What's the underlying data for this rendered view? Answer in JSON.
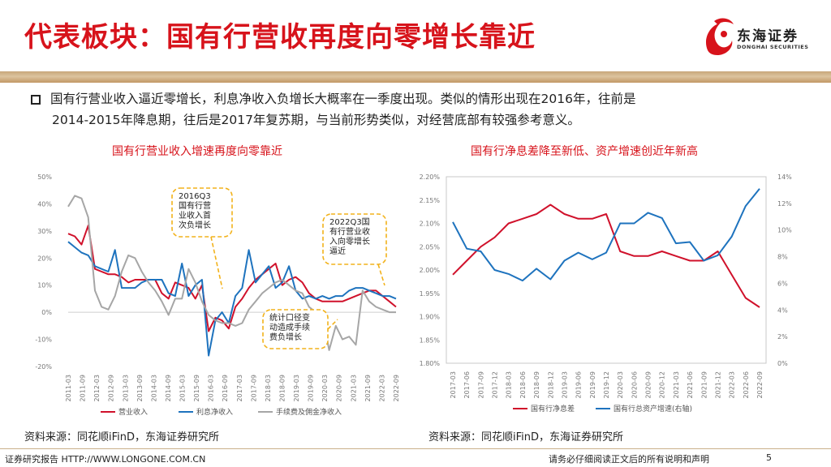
{
  "header": {
    "title": "代表板块：国有行营收再度向零增长靠近",
    "logo_name": "东海证券",
    "logo_en": "DONGHAI SECURITIES"
  },
  "bullet": {
    "line1": "国有行营业收入逼近零增长，利息净收入负增长大概率在一季度出现。类似的情形出现在2016年，往前是",
    "line2": "2014-2015年降息期，往后是2017年复苏期，与当前形势类似，对经营底部有较强参考意义。"
  },
  "sources": {
    "left": "资料来源：同花顺iFinD，东海证券研究所",
    "right": "资料来源：同花顺iFinD，东海证券研究所"
  },
  "footer": {
    "left": "证券研究报告 HTTP://WWW.LONGONE.COM.CN",
    "right": "请务必仔细阅读正文后的所有说明和声明",
    "page": "5"
  },
  "colors": {
    "accent_red": "#d7131b",
    "series_red": "#d0112b",
    "series_blue": "#1e73be",
    "series_gray": "#a6a6a6",
    "annotation_border": "#f2b21b"
  },
  "chart_data": [
    {
      "type": "line",
      "title": "国有行营业收入增速再度向零靠近",
      "ylim": [
        -20,
        50
      ],
      "y_unit": "%",
      "yticks": [
        "-20%",
        "-10%",
        "0%",
        "10%",
        "20%",
        "30%",
        "40%",
        "50%"
      ],
      "xticks": [
        "2011-03",
        "2011-09",
        "2012-03",
        "2012-09",
        "2013-03",
        "2013-09",
        "2014-03",
        "2014-09",
        "2015-03",
        "2015-09",
        "2016-03",
        "2016-09",
        "2017-03",
        "2017-09",
        "2018-03",
        "2018-09",
        "2019-03",
        "2019-09",
        "2020-03",
        "2020-09",
        "2021-03",
        "2021-09",
        "2022-03",
        "2022-09"
      ],
      "legend_position": "bottom",
      "series": [
        {
          "name": "营业收入",
          "color": "#d0112b",
          "values": [
            29,
            28,
            25,
            32,
            16,
            15,
            14,
            14,
            13,
            11,
            12,
            12,
            12,
            12,
            7,
            5,
            11,
            10,
            9,
            5,
            10,
            -7,
            -2,
            -3,
            -6,
            2,
            5,
            9,
            12,
            14,
            16,
            18,
            10,
            12,
            13,
            11,
            7,
            5,
            4,
            4,
            4,
            4,
            5,
            6,
            7,
            8,
            8,
            6,
            4,
            2
          ]
        },
        {
          "name": "利息净收入",
          "color": "#1e73be",
          "values": [
            26,
            24,
            22,
            21,
            17,
            16,
            15,
            23,
            9,
            9,
            9,
            11,
            12,
            12,
            12,
            7,
            6,
            18,
            6,
            10,
            12,
            -16,
            -3,
            0,
            -4,
            6,
            9,
            23,
            11,
            14,
            17,
            9,
            11,
            17,
            8,
            5,
            6,
            5,
            6,
            5,
            6,
            6,
            8,
            9,
            9,
            8,
            7,
            6,
            6,
            5
          ]
        },
        {
          "name": "手续费及佣金净收入",
          "color": "#a6a6a6",
          "values": [
            39,
            43,
            42,
            35,
            8,
            2,
            1,
            6,
            15,
            21,
            20,
            15,
            11,
            8,
            4,
            -1,
            5,
            5,
            16,
            11,
            4,
            -1,
            -3,
            -4,
            -4,
            -5,
            -4,
            1,
            4,
            7,
            9,
            11,
            12,
            10,
            8,
            7,
            2,
            0,
            -1,
            -14,
            -5,
            -10,
            -9,
            -12,
            8,
            4,
            2,
            1,
            0,
            0
          ]
        }
      ],
      "annotations": [
        {
          "lines": [
            "2016Q3",
            "国有行营",
            "业收入首",
            "次负增长"
          ]
        },
        {
          "lines": [
            "2022Q3国",
            "有行营业收",
            "入向零增长",
            "逼近"
          ]
        },
        {
          "lines": [
            "统计口径变",
            "动造成手续",
            "费负增长"
          ]
        }
      ]
    },
    {
      "type": "line",
      "title": "国有行净息差降至新低、资产增速创近年新高",
      "ylim_left": [
        1.8,
        2.2
      ],
      "ylim_right": [
        0,
        14
      ],
      "yticks_left": [
        "1.80%",
        "1.85%",
        "1.90%",
        "1.95%",
        "2.00%",
        "2.05%",
        "2.10%",
        "2.15%",
        "2.20%"
      ],
      "yticks_right": [
        "0%",
        "2%",
        "4%",
        "6%",
        "8%",
        "10%",
        "12%",
        "14%"
      ],
      "xticks": [
        "2017-03",
        "2017-06",
        "2017-09",
        "2017-12",
        "2018-03",
        "2018-06",
        "2018-09",
        "2018-12",
        "2019-03",
        "2019-06",
        "2019-09",
        "2019-12",
        "2020-03",
        "2020-06",
        "2020-09",
        "2020-12",
        "2021-03",
        "2021-06",
        "2021-09",
        "2021-12",
        "2022-03",
        "2022-06",
        "2022-09"
      ],
      "legend_position": "bottom",
      "series": [
        {
          "name": "国有行净息差",
          "axis": "left",
          "color": "#d0112b",
          "values": [
            1.99,
            2.02,
            2.05,
            2.07,
            2.1,
            2.11,
            2.12,
            2.14,
            2.12,
            2.11,
            2.11,
            2.12,
            2.04,
            2.03,
            2.03,
            2.04,
            2.03,
            2.02,
            2.02,
            2.04,
            1.99,
            1.94,
            1.92
          ]
        },
        {
          "name": "国有行总资产增速(右轴)",
          "axis": "right",
          "color": "#1e73be",
          "values": [
            10.6,
            8.6,
            8.4,
            7.0,
            6.7,
            6.2,
            7.1,
            6.3,
            7.7,
            8.3,
            7.8,
            8.3,
            10.5,
            10.5,
            11.3,
            10.9,
            9.0,
            9.1,
            7.7,
            8.1,
            9.5,
            11.8,
            13.1
          ]
        }
      ]
    }
  ]
}
